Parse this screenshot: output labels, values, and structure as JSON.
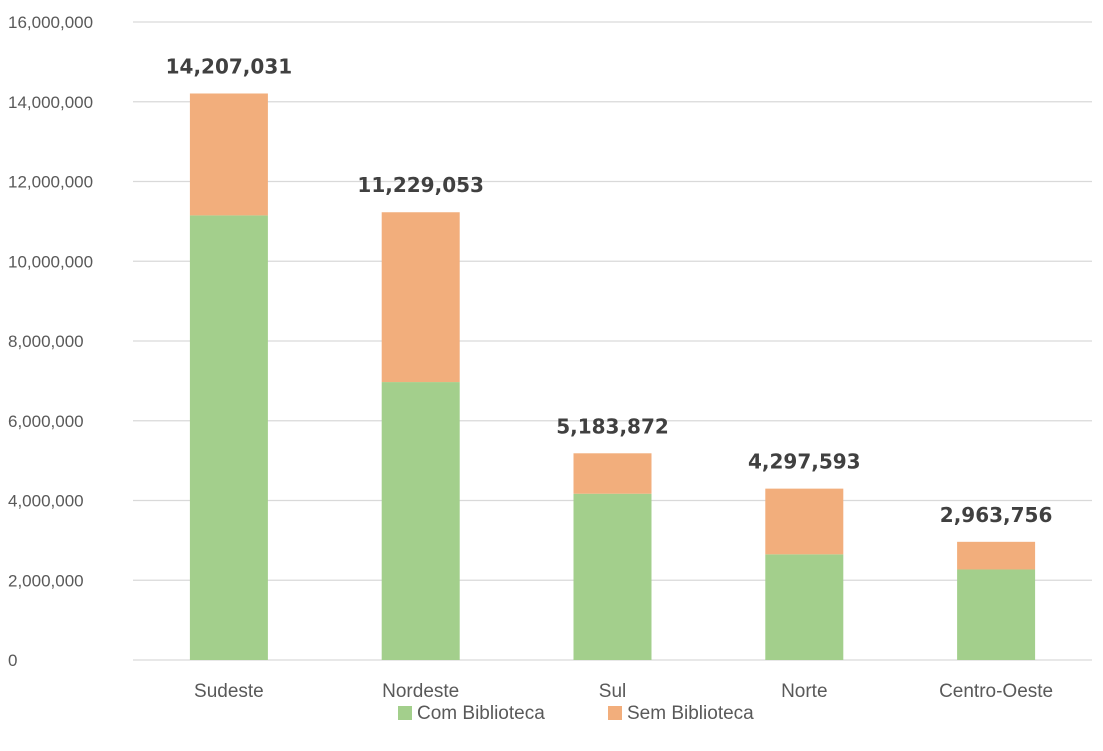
{
  "chart_data": {
    "type": "bar",
    "stacked": true,
    "categories": [
      "Sudeste",
      "Nordeste",
      "Sul",
      "Norte",
      "Centro-Oeste"
    ],
    "series": [
      {
        "name": "Com Biblioteca",
        "color": "#a3cf8c",
        "values": [
          11150000,
          6970000,
          4170000,
          2650000,
          2270000
        ]
      },
      {
        "name": "Sem Biblioteca",
        "color": "#f2ae7c",
        "values": [
          3057031,
          4259053,
          1013872,
          1647593,
          693756
        ]
      }
    ],
    "totals": [
      14207031,
      11229053,
      5183872,
      4297593,
      2963756
    ],
    "total_labels": [
      "14,207,031",
      "11,229,053",
      "5,183,872",
      "4,297,593",
      "2,963,756"
    ],
    "y_ticks": [
      0,
      2000000,
      4000000,
      6000000,
      8000000,
      10000000,
      12000000,
      14000000,
      16000000
    ],
    "y_tick_labels": [
      "0",
      "2,000,000",
      "4,000,000",
      "6,000,000",
      "8,000,000",
      "10,000,000",
      "12,000,000",
      "14,000,000",
      "16,000,000"
    ],
    "ylim": [
      0,
      16000000
    ],
    "grid": true,
    "legend_position": "bottom",
    "title": "",
    "xlabel": "",
    "ylabel": "",
    "colors": {
      "gridline": "#d9d9d9",
      "tick_text": "#595959",
      "total_text": "#404040"
    }
  }
}
